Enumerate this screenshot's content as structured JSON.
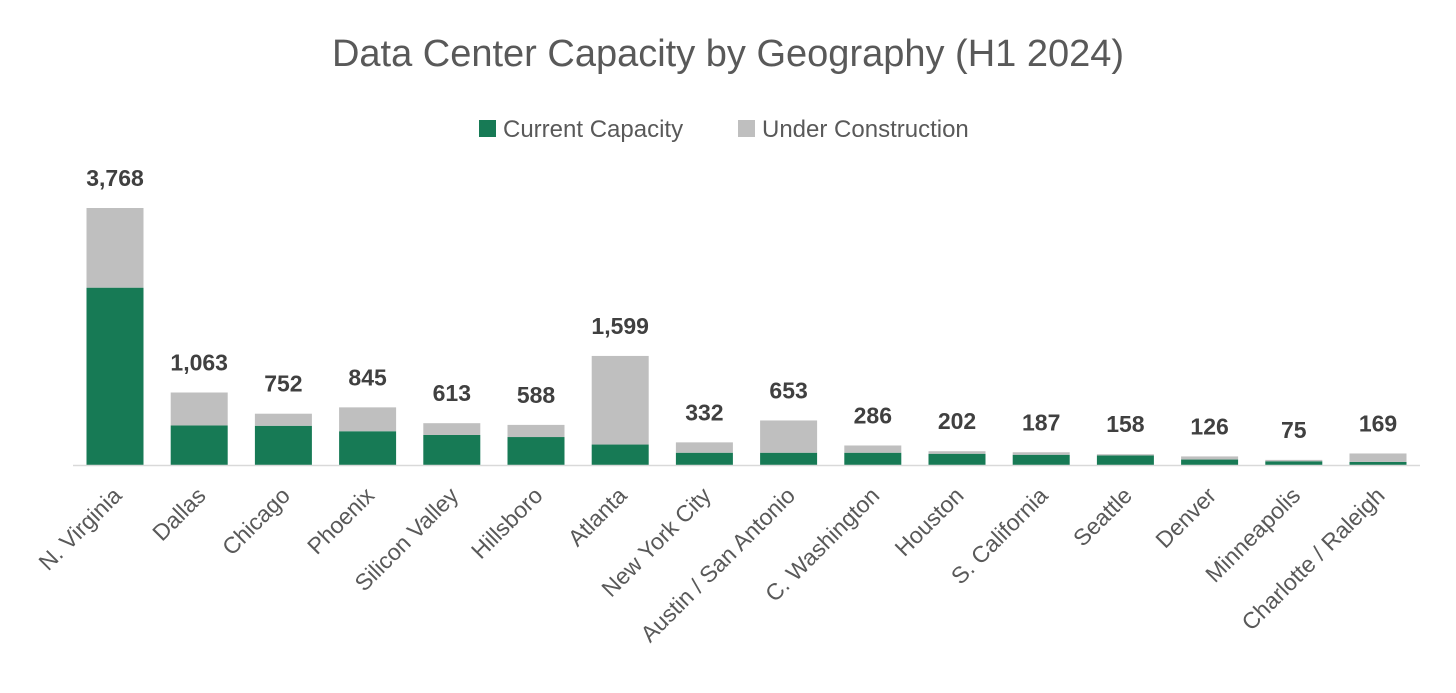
{
  "chart_data": {
    "type": "bar",
    "stacked": true,
    "title": "Data Center Capacity by Geography (H1 2024)",
    "xlabel": "",
    "ylabel": "",
    "ylim": [
      0,
      3768
    ],
    "grid": false,
    "legend_position": "top-center",
    "categories": [
      "N. Virginia",
      "Dallas",
      "Chicago",
      "Phoenix",
      "Silicon Valley",
      "Hillsboro",
      "Atlanta",
      "New York City",
      "Austin / San Antonio",
      "C. Washington",
      "Houston",
      "S. California",
      "Seattle",
      "Denver",
      "Minneapolis",
      "Charlotte / Raleigh"
    ],
    "series": [
      {
        "name": "Current Capacity",
        "color": "#177A55",
        "values": [
          2600,
          580,
          575,
          495,
          440,
          410,
          300,
          180,
          180,
          180,
          165,
          150,
          140,
          80,
          55,
          45
        ]
      },
      {
        "name": "Under Construction",
        "color": "#BFBFBF",
        "values": [
          1168,
          483,
          177,
          350,
          173,
          178,
          1299,
          152,
          473,
          106,
          37,
          37,
          18,
          46,
          20,
          124
        ]
      }
    ],
    "totals": [
      3768,
      1063,
      752,
      845,
      613,
      588,
      1599,
      332,
      653,
      286,
      202,
      187,
      158,
      126,
      75,
      169
    ],
    "total_labels": [
      "3,768",
      "1,063",
      "752",
      "845",
      "613",
      "588",
      "1,599",
      "332",
      "653",
      "286",
      "202",
      "187",
      "158",
      "126",
      "75",
      "169"
    ]
  }
}
